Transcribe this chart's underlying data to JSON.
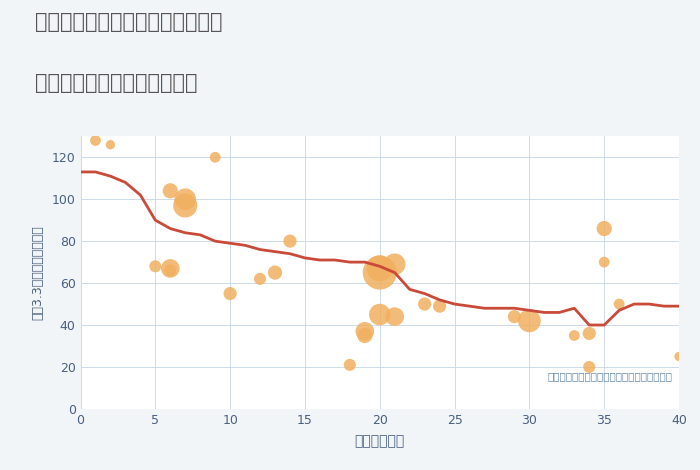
{
  "title_line1": "愛知県名古屋市中川区法華西町の",
  "title_line2": "築年数別中古マンション価格",
  "xlabel": "築年数（年）",
  "ylabel": "坪（3.3㎡）単価（万円）",
  "annotation": "円の大きさは、取引のあった物件面積を示す",
  "background_color": "#f2f5f8",
  "plot_bg_color": "#ffffff",
  "xlim": [
    0,
    40
  ],
  "ylim": [
    0,
    130
  ],
  "xticks": [
    0,
    5,
    10,
    15,
    20,
    25,
    30,
    35,
    40
  ],
  "yticks": [
    0,
    20,
    40,
    60,
    80,
    100,
    120
  ],
  "line_color": "#c94a38",
  "line_x": [
    0,
    1,
    2,
    3,
    4,
    5,
    6,
    7,
    8,
    9,
    10,
    11,
    12,
    13,
    14,
    15,
    16,
    17,
    18,
    19,
    20,
    21,
    22,
    23,
    24,
    25,
    26,
    27,
    28,
    29,
    30,
    31,
    32,
    33,
    34,
    35,
    36,
    37,
    38,
    39,
    40
  ],
  "line_y": [
    113,
    113,
    111,
    108,
    102,
    90,
    86,
    84,
    83,
    80,
    79,
    78,
    76,
    75,
    74,
    72,
    71,
    71,
    70,
    70,
    68,
    65,
    57,
    55,
    52,
    50,
    49,
    48,
    48,
    48,
    47,
    46,
    46,
    48,
    40,
    40,
    47,
    50,
    50,
    49,
    49
  ],
  "scatter_x": [
    1,
    2,
    5,
    6,
    6,
    6,
    7,
    7,
    9,
    10,
    12,
    13,
    14,
    18,
    19,
    19,
    20,
    20,
    20,
    21,
    21,
    23,
    24,
    29,
    30,
    33,
    34,
    34,
    35,
    35,
    36,
    40
  ],
  "scatter_y": [
    128,
    126,
    68,
    67,
    66,
    104,
    100,
    97,
    120,
    55,
    62,
    65,
    80,
    21,
    37,
    35,
    67,
    65,
    45,
    69,
    44,
    50,
    49,
    44,
    42,
    35,
    36,
    20,
    86,
    70,
    50,
    25
  ],
  "scatter_size": [
    20,
    15,
    25,
    60,
    25,
    40,
    80,
    100,
    20,
    30,
    25,
    35,
    30,
    25,
    60,
    40,
    120,
    200,
    80,
    80,
    60,
    30,
    30,
    30,
    90,
    20,
    30,
    25,
    40,
    20,
    20,
    15
  ],
  "scatter_color": "#f0b060",
  "scatter_alpha": 0.85,
  "title_color": "#555555",
  "axis_color": "#4a6080",
  "grid_color": "#ccdaeb",
  "annotation_color": "#6688aa"
}
